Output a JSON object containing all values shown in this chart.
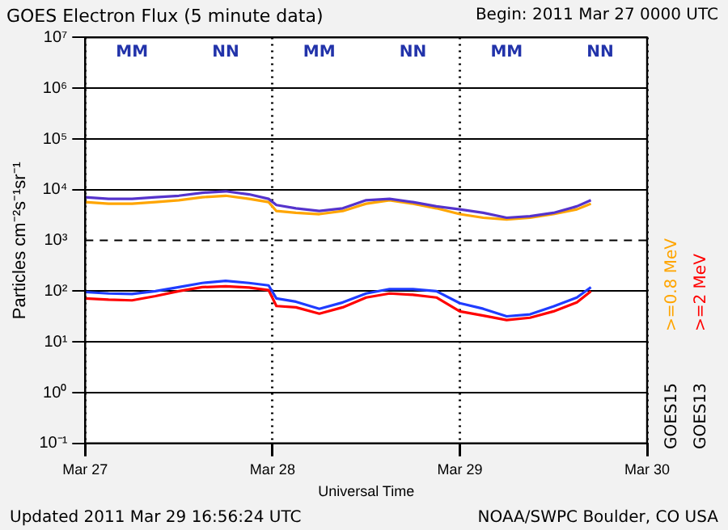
{
  "chart_data": {
    "type": "line",
    "title": "GOES Electron Flux (5 minute data)",
    "xlabel": "Universal Time",
    "ylabel": "Particles cm⁻²s⁻¹sr⁻¹",
    "x": [
      "2011-03-27T00:00",
      "2011-03-27T03:00",
      "2011-03-27T06:00",
      "2011-03-27T09:00",
      "2011-03-27T12:00",
      "2011-03-27T15:00",
      "2011-03-27T18:00",
      "2011-03-27T21:00",
      "2011-03-27T23:30",
      "2011-03-28T00:30",
      "2011-03-28T03:00",
      "2011-03-28T06:00",
      "2011-03-28T09:00",
      "2011-03-28T12:00",
      "2011-03-28T15:00",
      "2011-03-28T18:00",
      "2011-03-28T21:00",
      "2011-03-29T00:00",
      "2011-03-29T03:00",
      "2011-03-29T06:00",
      "2011-03-29T09:00",
      "2011-03-29T12:00",
      "2011-03-29T15:00",
      "2011-03-29T16:48"
    ],
    "series": [
      {
        "color": "#5533cc",
        "values": [
          7100,
          6600,
          6600,
          7100,
          7600,
          8700,
          9300,
          8100,
          6600,
          5000,
          4300,
          3800,
          4300,
          6200,
          6600,
          5700,
          4700,
          4100,
          3500,
          2800,
          3000,
          3500,
          4700,
          6200
        ]
      },
      {
        "name": ">=0.8 MeV",
        "color": "#ffa500",
        "values": [
          5700,
          5300,
          5300,
          5700,
          6200,
          7100,
          7600,
          6600,
          5700,
          3800,
          3500,
          3300,
          3800,
          5300,
          6200,
          5300,
          4300,
          3300,
          2800,
          2600,
          2800,
          3300,
          4100,
          5300
        ]
      },
      {
        "color": "#1f3cff",
        "values": [
          96,
          90,
          88,
          100,
          120,
          145,
          160,
          145,
          130,
          72,
          62,
          45,
          60,
          90,
          110,
          110,
          100,
          58,
          45,
          32,
          35,
          50,
          75,
          120
        ]
      },
      {
        "name": ">=2 MeV",
        "color": "#ff0000",
        "values": [
          72,
          68,
          66,
          80,
          100,
          120,
          125,
          118,
          105,
          51,
          48,
          36,
          48,
          75,
          90,
          85,
          75,
          40,
          33,
          27,
          30,
          40,
          60,
          100
        ]
      }
    ],
    "log": "y",
    "ylim": [
      0.1,
      10000000
    ],
    "yticks": [
      {
        "value": 0.1,
        "label": "10⁻¹"
      },
      {
        "value": 1,
        "label": "10⁰"
      },
      {
        "value": 10,
        "label": "10¹"
      },
      {
        "value": 100,
        "label": "10²"
      },
      {
        "value": 1000,
        "label": "10³"
      },
      {
        "value": 10000,
        "label": "10⁴"
      },
      {
        "value": 100000,
        "label": "10⁵"
      },
      {
        "value": 1000000,
        "label": "10⁶"
      },
      {
        "value": 10000000,
        "label": "10⁷"
      }
    ],
    "xlim": [
      "2011-03-27",
      "2011-03-30"
    ],
    "xticks": [
      {
        "value": "2011-03-27",
        "label": "Mar 27"
      },
      {
        "value": "2011-03-28",
        "label": "Mar 28"
      },
      {
        "value": "2011-03-29",
        "label": "Mar 29"
      },
      {
        "value": "2011-03-30",
        "label": "Mar 30"
      }
    ],
    "grid": true,
    "legend": "right",
    "marker": "none",
    "ref_lines": [
      {
        "axis": "y",
        "value": 1000,
        "line_style": "dashed",
        "color": "#000000"
      }
    ],
    "annotations": [
      "Begin: 2011 Mar 27 0000 UTC",
      "Updated 2011 Mar 29 16:56:24 UTC",
      "NOAA/SWPC Boulder, CO USA",
      "GOES15",
      "GOES13",
      "MM",
      "NN",
      "MM",
      "NN",
      "MM",
      "NN"
    ]
  }
}
